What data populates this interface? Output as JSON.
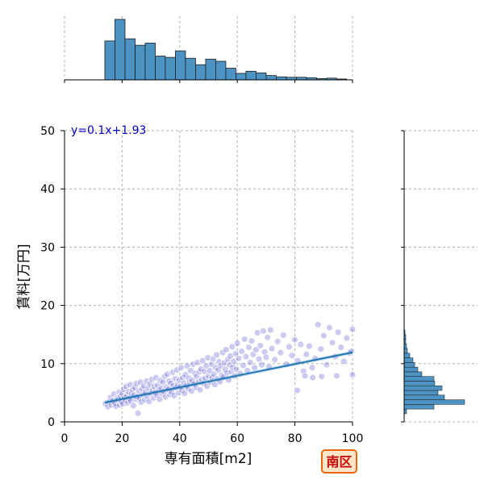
{
  "chart_data": {
    "type": "scatter",
    "title": "",
    "xlabel": "専有面積[m2]",
    "ylabel": "賃料[万円]",
    "xlim": [
      0,
      100
    ],
    "ylim": [
      0,
      50
    ],
    "x_ticks": [
      "0",
      "20",
      "40",
      "60",
      "80",
      "100"
    ],
    "y_ticks": [
      "0",
      "10",
      "20",
      "30",
      "40",
      "50"
    ],
    "grid": true,
    "annotation": "y=0.1x+1.93",
    "badge": "南区",
    "colors": {
      "points": "#4444cc",
      "regression": "#1f77b4",
      "histogram": "#4c93c3",
      "badge_border": "#ee6600",
      "badge_fill": "#ffe6c8",
      "badge_text": "#cc0000"
    },
    "regression": {
      "slope": 0.1,
      "intercept": 1.93,
      "x_range": [
        14,
        100
      ]
    },
    "marginal_x_histogram": {
      "bin_edges": [
        14,
        17.5,
        21,
        24.5,
        28,
        31.5,
        35,
        38.5,
        42,
        45.5,
        49,
        52.5,
        56,
        59.5,
        63,
        66.5,
        70,
        73.5,
        77,
        80.5,
        84,
        87.5,
        91,
        94.5,
        98
      ],
      "counts": [
        9,
        14,
        9.5,
        8,
        8.5,
        5.5,
        5.2,
        6.7,
        5,
        3.5,
        4.8,
        4.3,
        2.7,
        1.5,
        2,
        1.6,
        1,
        0.7,
        0.6,
        0.6,
        0.5,
        0.3,
        0.4,
        0.2
      ]
    },
    "marginal_y_histogram": {
      "bin_edges": [
        1.4,
        2.2,
        3,
        3.8,
        4.6,
        5.4,
        6.2,
        7,
        7.8,
        8.6,
        9.4,
        10.2,
        11,
        11.8,
        12.6,
        13.4,
        14.2,
        15,
        15.8
      ],
      "counts": [
        3,
        37,
        75,
        50,
        42,
        47,
        38,
        37,
        22,
        17,
        13,
        11,
        7,
        4,
        3,
        2,
        2,
        1
      ]
    },
    "scatter_points": [
      [
        14.2,
        3.1
      ],
      [
        15.1,
        2.6
      ],
      [
        15.5,
        3.4
      ],
      [
        16,
        4.2
      ],
      [
        16.3,
        2.9
      ],
      [
        16.8,
        3.6
      ],
      [
        17.2,
        4.8
      ],
      [
        17.5,
        3.2
      ],
      [
        17.9,
        2.7
      ],
      [
        18.3,
        4.1
      ],
      [
        18.6,
        3.8
      ],
      [
        19,
        5.1
      ],
      [
        19.2,
        2.9
      ],
      [
        19.5,
        4.4
      ],
      [
        19.8,
        3.5
      ],
      [
        20.1,
        4.9
      ],
      [
        20.3,
        3.1
      ],
      [
        20.6,
        5.6
      ],
      [
        20.9,
        4.2
      ],
      [
        21.2,
        3.7
      ],
      [
        21.4,
        6.1
      ],
      [
        21.7,
        4.5
      ],
      [
        22,
        3.3
      ],
      [
        22.2,
        5.2
      ],
      [
        22.5,
        4
      ],
      [
        22.8,
        6.4
      ],
      [
        23,
        3.6
      ],
      [
        23.3,
        4.8
      ],
      [
        23.6,
        5.5
      ],
      [
        23.9,
        2.8
      ],
      [
        24.1,
        4.6
      ],
      [
        24.4,
        5.9
      ],
      [
        24.7,
        3.9
      ],
      [
        25,
        6.6
      ],
      [
        25.2,
        4.3
      ],
      [
        25.5,
        1.5
      ],
      [
        25.8,
        5.3
      ],
      [
        26.1,
        4.1
      ],
      [
        26.4,
        6.8
      ],
      [
        26.6,
        3.4
      ],
      [
        27,
        5.7
      ],
      [
        27.3,
        4.7
      ],
      [
        27.6,
        6.2
      ],
      [
        27.9,
        3.8
      ],
      [
        28.2,
        5.1
      ],
      [
        28.5,
        7
      ],
      [
        28.8,
        4.4
      ],
      [
        29.1,
        5.8
      ],
      [
        29.4,
        3.5
      ],
      [
        29.7,
        6.5
      ],
      [
        30,
        4.9
      ],
      [
        30.3,
        7.3
      ],
      [
        30.6,
        5.4
      ],
      [
        30.9,
        4.1
      ],
      [
        31.2,
        6.1
      ],
      [
        31.5,
        5
      ],
      [
        31.8,
        7.6
      ],
      [
        32.1,
        4.6
      ],
      [
        32.4,
        6.3
      ],
      [
        32.7,
        5.5
      ],
      [
        33,
        3.9
      ],
      [
        33.3,
        7.1
      ],
      [
        33.6,
        5.8
      ],
      [
        33.9,
        4.8
      ],
      [
        34.2,
        6.8
      ],
      [
        34.5,
        5.2
      ],
      [
        34.8,
        7.8
      ],
      [
        35.1,
        4.3
      ],
      [
        35.4,
        6
      ],
      [
        35.7,
        8.2
      ],
      [
        36,
        5.6
      ],
      [
        36.3,
        7
      ],
      [
        36.6,
        4.7
      ],
      [
        36.9,
        6.6
      ],
      [
        37.2,
        5.1
      ],
      [
        37.5,
        8.5
      ],
      [
        37.8,
        6.2
      ],
      [
        38.1,
        4.5
      ],
      [
        38.4,
        7.4
      ],
      [
        38.7,
        5.9
      ],
      [
        39,
        8.9
      ],
      [
        39.3,
        6.4
      ],
      [
        39.6,
        5
      ],
      [
        39.9,
        7.2
      ],
      [
        40.2,
        6
      ],
      [
        40.5,
        9.3
      ],
      [
        40.8,
        5.4
      ],
      [
        41.1,
        7.6
      ],
      [
        41.4,
        6.7
      ],
      [
        41.7,
        4.9
      ],
      [
        42,
        8.1
      ],
      [
        42.3,
        6.2
      ],
      [
        42.6,
        9.6
      ],
      [
        42.9,
        5.7
      ],
      [
        43.2,
        7.5
      ],
      [
        43.5,
        6.8
      ],
      [
        43.8,
        8.8
      ],
      [
        44.1,
        5.3
      ],
      [
        44.4,
        7.1
      ],
      [
        44.7,
        9.9
      ],
      [
        45,
        6.5
      ],
      [
        45.3,
        8.3
      ],
      [
        45.6,
        5.9
      ],
      [
        45.9,
        7.8
      ],
      [
        46.2,
        10.2
      ],
      [
        46.5,
        6.9
      ],
      [
        46.8,
        8.6
      ],
      [
        47.1,
        5.5
      ],
      [
        47.4,
        9.1
      ],
      [
        47.7,
        7.3
      ],
      [
        48,
        10.5
      ],
      [
        48.3,
        6.6
      ],
      [
        48.6,
        8.7
      ],
      [
        48.9,
        7.5
      ],
      [
        49.2,
        9.6
      ],
      [
        49.5,
        6.1
      ],
      [
        49.8,
        11
      ],
      [
        50.1,
        7.9
      ],
      [
        50.4,
        8.8
      ],
      [
        50.7,
        6.8
      ],
      [
        51,
        9.9
      ],
      [
        51.3,
        7.6
      ],
      [
        51.6,
        10.8
      ],
      [
        51.9,
        8.2
      ],
      [
        52.2,
        6.4
      ],
      [
        52.5,
        9.3
      ],
      [
        52.8,
        11.5
      ],
      [
        53.1,
        7.4
      ],
      [
        53.4,
        8.9
      ],
      [
        53.7,
        10.3
      ],
      [
        54,
        6.9
      ],
      [
        54.3,
        9.6
      ],
      [
        54.6,
        8
      ],
      [
        54.9,
        11.9
      ],
      [
        55.2,
        7.7
      ],
      [
        55.5,
        10.1
      ],
      [
        55.8,
        9
      ],
      [
        56.1,
        12.4
      ],
      [
        56.4,
        8.4
      ],
      [
        56.7,
        10.7
      ],
      [
        57,
        7.2
      ],
      [
        57.3,
        9.8
      ],
      [
        57.6,
        11.3
      ],
      [
        57.9,
        8.6
      ],
      [
        58.2,
        12.9
      ],
      [
        58.5,
        9.4
      ],
      [
        58.8,
        10.4
      ],
      [
        59.1,
        7.9
      ],
      [
        59.4,
        11.7
      ],
      [
        59.7,
        9
      ],
      [
        60,
        13.5
      ],
      [
        60.5,
        10.9
      ],
      [
        61,
        8.3
      ],
      [
        61.5,
        12.1
      ],
      [
        62,
        9.7
      ],
      [
        62.5,
        14.2
      ],
      [
        63,
        11.2
      ],
      [
        63.5,
        8.8
      ],
      [
        64,
        12.8
      ],
      [
        64.5,
        10.2
      ],
      [
        65,
        13.9
      ],
      [
        65.5,
        11.6
      ],
      [
        66,
        9.3
      ],
      [
        66.5,
        12.4
      ],
      [
        67,
        15.3
      ],
      [
        67.5,
        10.8
      ],
      [
        68,
        13.1
      ],
      [
        68.5,
        9.8
      ],
      [
        69,
        15.6
      ],
      [
        69.5,
        12
      ],
      [
        70,
        11.1
      ],
      [
        70.5,
        14.5
      ],
      [
        71,
        9.5
      ],
      [
        71.5,
        15.8
      ],
      [
        72,
        12.6
      ],
      [
        73,
        10.7
      ],
      [
        74,
        13.8
      ],
      [
        75,
        11.9
      ],
      [
        76,
        14.9
      ],
      [
        77,
        9.9
      ],
      [
        78,
        12.9
      ],
      [
        79,
        11.4
      ],
      [
        80,
        14.1
      ],
      [
        81,
        10.5
      ],
      [
        82,
        13.3
      ],
      [
        83,
        8.7
      ],
      [
        84,
        11.6
      ],
      [
        85,
        13
      ],
      [
        86,
        9.3
      ],
      [
        87,
        10.9
      ],
      [
        88,
        16.7
      ],
      [
        89,
        12.5
      ],
      [
        90,
        14.8
      ],
      [
        91,
        9.8
      ],
      [
        92,
        16.2
      ],
      [
        93,
        13.6
      ],
      [
        94,
        11.2
      ],
      [
        95,
        15.4
      ],
      [
        96,
        12.8
      ],
      [
        97,
        10.4
      ],
      [
        98,
        14.4
      ],
      [
        99,
        11.8
      ],
      [
        100,
        15.9
      ],
      [
        100,
        8.1
      ],
      [
        80.8,
        5.4
      ],
      [
        83.5,
        7.9
      ],
      [
        86.2,
        7.6
      ],
      [
        89.3,
        7.8
      ],
      [
        94.5,
        7.9
      ],
      [
        99.6,
        12.1
      ]
    ]
  }
}
